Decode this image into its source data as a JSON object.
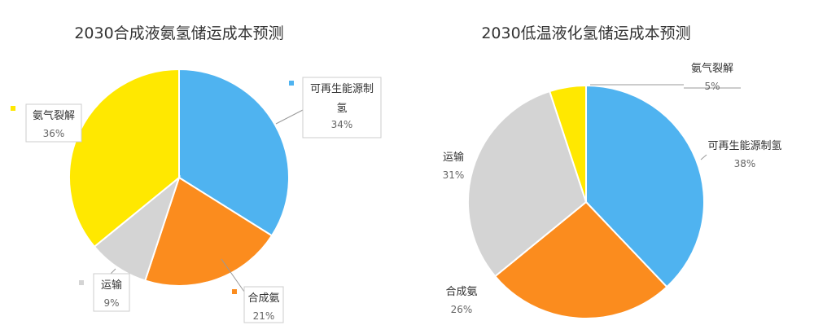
{
  "chart_data": [
    {
      "type": "pie",
      "title": "2030合成液氨氢储运成本预测",
      "slices": [
        {
          "label": "可再生能源制氢",
          "label_lines": [
            "可再生能源制",
            "氢"
          ],
          "value": 34,
          "pct_label": "34%",
          "color": "#4fb3f0"
        },
        {
          "label": "合成氨",
          "label_lines": [
            "合成氨"
          ],
          "value": 21,
          "pct_label": "21%",
          "color": "#fb8c1e"
        },
        {
          "label": "运输",
          "label_lines": [
            "运输"
          ],
          "value": 9,
          "pct_label": "9%",
          "color": "#d4d4d4"
        },
        {
          "label": "氨气裂解",
          "label_lines": [
            "氨气裂解"
          ],
          "value": 36,
          "pct_label": "36%",
          "color": "#ffe800"
        }
      ]
    },
    {
      "type": "pie",
      "title": "2030低温液化氢储运成本预测",
      "slices": [
        {
          "label": "可再生能源制氢",
          "label_lines": [
            "可再生能源制氢"
          ],
          "value": 38,
          "pct_label": "38%",
          "color": "#4fb3f0"
        },
        {
          "label": "合成氨",
          "label_lines": [
            "合成氨"
          ],
          "value": 26,
          "pct_label": "26%",
          "color": "#fb8c1e"
        },
        {
          "label": "运输",
          "label_lines": [
            "运输"
          ],
          "value": 31,
          "pct_label": "31%",
          "color": "#d4d4d4"
        },
        {
          "label": "氨气裂解",
          "label_lines": [
            "氨气裂解"
          ],
          "value": 5,
          "pct_label": "5%",
          "color": "#ffe800"
        }
      ]
    }
  ]
}
